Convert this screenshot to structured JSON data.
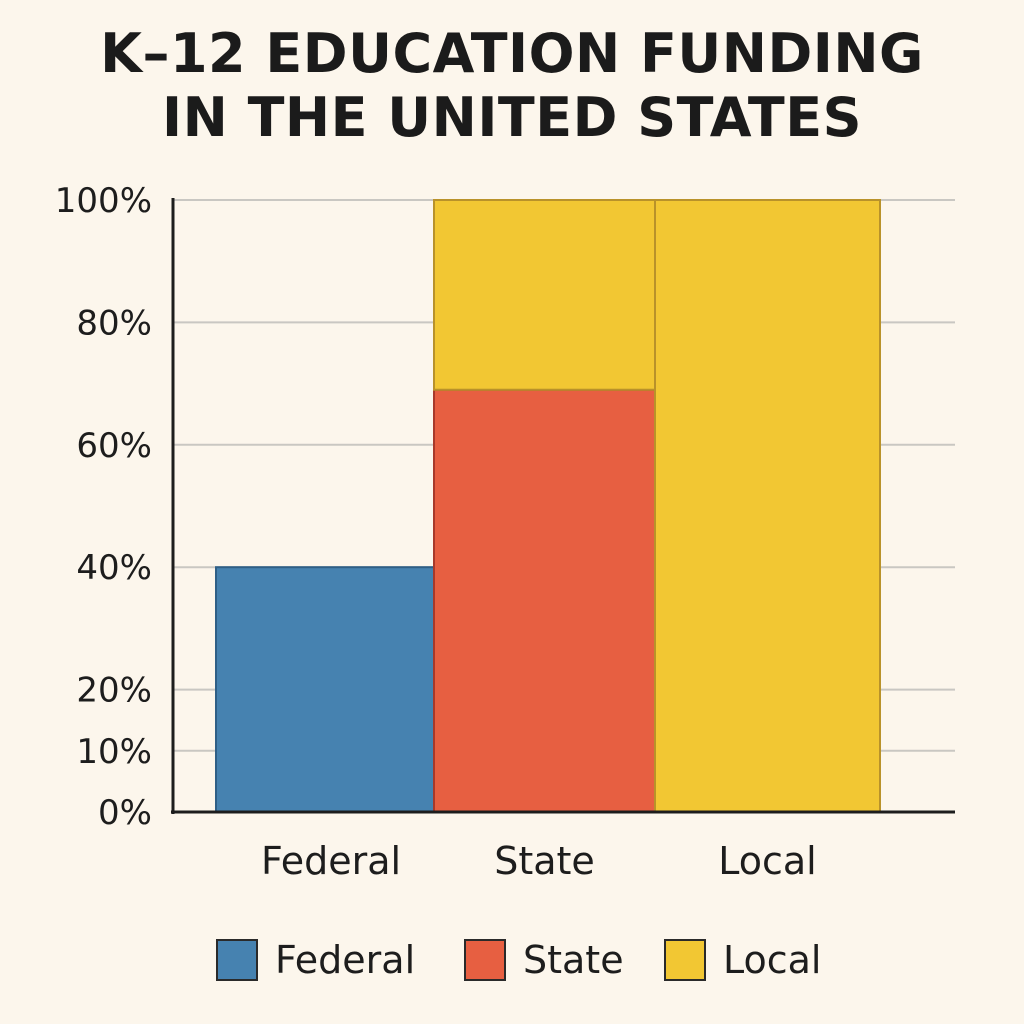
{
  "chart_data": {
    "type": "bar",
    "title": [
      "K–12 EDUCATION FUNDING",
      "IN THE UNITED STATES"
    ],
    "categories": [
      "Federal",
      "State",
      "Local"
    ],
    "y_ticks": [
      {
        "value": 100,
        "label": "100%"
      },
      {
        "value": 80,
        "label": "80%"
      },
      {
        "value": 60,
        "label": "60%"
      },
      {
        "value": 40,
        "label": "40%"
      },
      {
        "value": 20,
        "label": "20%"
      },
      {
        "value": 10,
        "label": "10%"
      },
      {
        "value": 0,
        "label": "0%"
      }
    ],
    "ylim": [
      0,
      100
    ],
    "grid": true,
    "legend_position": "bottom",
    "segments": [
      {
        "category": "Federal",
        "series": "Federal",
        "from": 0,
        "to": 40
      },
      {
        "category": "State",
        "series": "State",
        "from": 0,
        "to": 69
      },
      {
        "category": "State",
        "series": "Local",
        "from": 69,
        "to": 100
      },
      {
        "category": "Local",
        "series": "Local",
        "from": 0,
        "to": 100
      }
    ],
    "series": [
      {
        "name": "Federal",
        "color": "#4682b0"
      },
      {
        "name": "State",
        "color": "#e75f41"
      },
      {
        "name": "Local",
        "color": "#f2c733"
      }
    ]
  }
}
